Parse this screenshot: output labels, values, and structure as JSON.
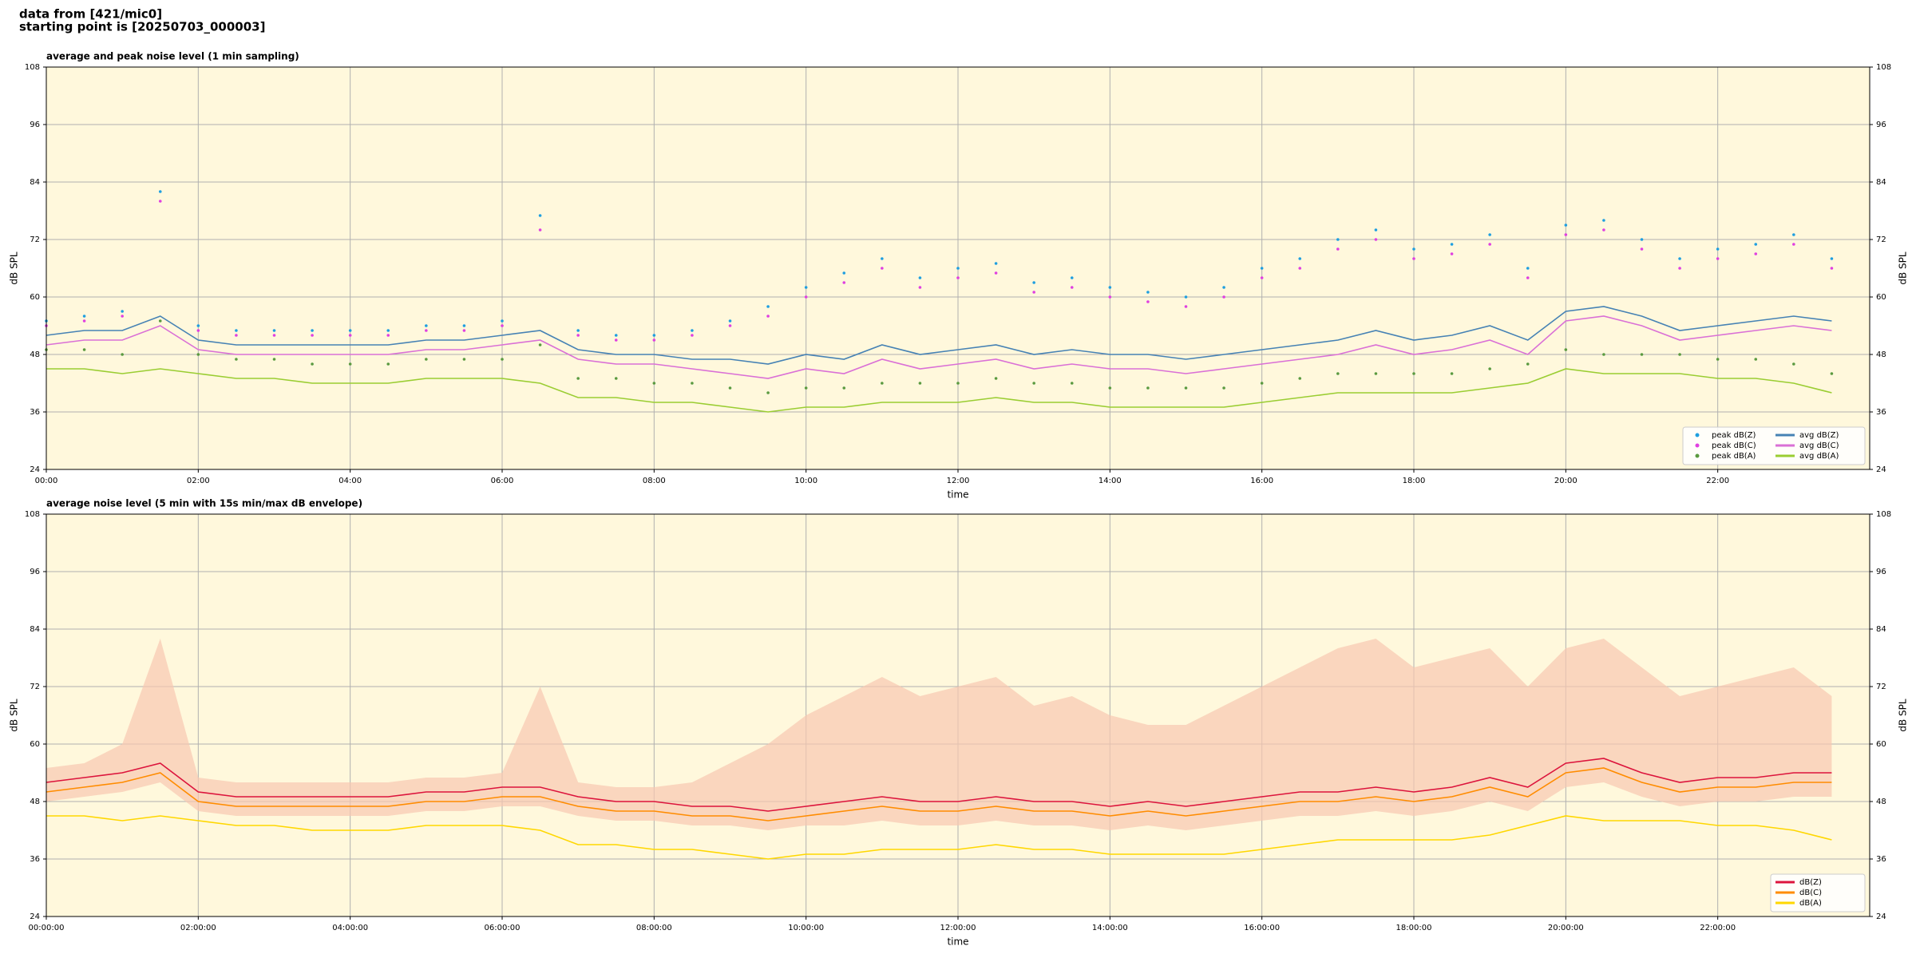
{
  "header": [
    "data from [421/mic0]",
    "starting point is [20250703_000003]"
  ],
  "chart_data": [
    {
      "type": "line",
      "title": "average and peak noise level (1 min sampling)",
      "xlabel": "time",
      "ylabel": "dB SPL",
      "background": "#fff8dc",
      "grid": true,
      "legend": "lower right",
      "legend_columns": 2,
      "xlim": [
        0,
        24
      ],
      "xticks": [
        {
          "value": 0,
          "label": "00:00"
        },
        {
          "value": 2,
          "label": "02:00"
        },
        {
          "value": 4,
          "label": "04:00"
        },
        {
          "value": 6,
          "label": "06:00"
        },
        {
          "value": 8,
          "label": "08:00"
        },
        {
          "value": 10,
          "label": "10:00"
        },
        {
          "value": 12,
          "label": "12:00"
        },
        {
          "value": 14,
          "label": "14:00"
        },
        {
          "value": 16,
          "label": "16:00"
        },
        {
          "value": 18,
          "label": "18:00"
        },
        {
          "value": 20,
          "label": "20:00"
        },
        {
          "value": 22,
          "label": "22:00"
        }
      ],
      "ylim": [
        24,
        108
      ],
      "yticks": [
        24,
        36,
        48,
        60,
        72,
        84,
        96,
        108
      ],
      "x": [
        0,
        0.5,
        1,
        1.5,
        2,
        2.5,
        3,
        3.5,
        4,
        4.5,
        5,
        5.5,
        6,
        6.5,
        7,
        7.5,
        8,
        8.5,
        9,
        9.5,
        10,
        10.5,
        11,
        11.5,
        12,
        12.5,
        13,
        13.5,
        14,
        14.5,
        15,
        15.5,
        16,
        16.5,
        17,
        17.5,
        18,
        18.5,
        19,
        19.5,
        20,
        20.5,
        21,
        21.5,
        22,
        22.5,
        23,
        23.5
      ],
      "series": [
        {
          "name": "peak dB(Z)",
          "kind": "scatter",
          "color": "#1f9fe0",
          "values": [
            55,
            56,
            57,
            82,
            54,
            53,
            53,
            53,
            53,
            53,
            54,
            54,
            55,
            77,
            53,
            52,
            52,
            53,
            55,
            58,
            62,
            65,
            68,
            64,
            66,
            67,
            63,
            64,
            62,
            61,
            60,
            62,
            66,
            68,
            72,
            74,
            70,
            71,
            73,
            66,
            75,
            76,
            72,
            68,
            70,
            71,
            73,
            68
          ]
        },
        {
          "name": "peak dB(C)",
          "kind": "scatter",
          "color": "#e040e0",
          "values": [
            54,
            55,
            56,
            80,
            53,
            52,
            52,
            52,
            52,
            52,
            53,
            53,
            54,
            74,
            52,
            51,
            51,
            52,
            54,
            56,
            60,
            63,
            66,
            62,
            64,
            65,
            61,
            62,
            60,
            59,
            58,
            60,
            64,
            66,
            70,
            72,
            68,
            69,
            71,
            64,
            73,
            74,
            70,
            66,
            68,
            69,
            71,
            66
          ]
        },
        {
          "name": "peak dB(A)",
          "kind": "scatter",
          "color": "#5a9a40",
          "values": [
            49,
            49,
            48,
            55,
            48,
            47,
            47,
            46,
            46,
            46,
            47,
            47,
            47,
            50,
            43,
            43,
            42,
            42,
            41,
            40,
            41,
            41,
            42,
            42,
            42,
            43,
            42,
            42,
            41,
            41,
            41,
            41,
            42,
            43,
            44,
            44,
            44,
            44,
            45,
            46,
            49,
            48,
            48,
            48,
            47,
            47,
            46,
            44
          ]
        },
        {
          "name": "avg dB(Z)",
          "kind": "line",
          "color": "#4682b4",
          "values": [
            52,
            53,
            53,
            56,
            51,
            50,
            50,
            50,
            50,
            50,
            51,
            51,
            52,
            53,
            49,
            48,
            48,
            47,
            47,
            46,
            48,
            47,
            50,
            48,
            49,
            50,
            48,
            49,
            48,
            48,
            47,
            48,
            49,
            50,
            51,
            53,
            51,
            52,
            54,
            51,
            57,
            58,
            56,
            53,
            54,
            55,
            56,
            55
          ]
        },
        {
          "name": "avg dB(C)",
          "kind": "line",
          "color": "#da70d6",
          "values": [
            50,
            51,
            51,
            54,
            49,
            48,
            48,
            48,
            48,
            48,
            49,
            49,
            50,
            51,
            47,
            46,
            46,
            45,
            44,
            43,
            45,
            44,
            47,
            45,
            46,
            47,
            45,
            46,
            45,
            45,
            44,
            45,
            46,
            47,
            48,
            50,
            48,
            49,
            51,
            48,
            55,
            56,
            54,
            51,
            52,
            53,
            54,
            53
          ]
        },
        {
          "name": "avg dB(A)",
          "kind": "line",
          "color": "#9acd32",
          "values": [
            45,
            45,
            44,
            45,
            44,
            43,
            43,
            42,
            42,
            42,
            43,
            43,
            43,
            42,
            39,
            39,
            38,
            38,
            37,
            36,
            37,
            37,
            38,
            38,
            38,
            39,
            38,
            38,
            37,
            37,
            37,
            37,
            38,
            39,
            40,
            40,
            40,
            40,
            41,
            42,
            45,
            44,
            44,
            44,
            43,
            43,
            42,
            40
          ]
        }
      ]
    },
    {
      "type": "line",
      "title": "average noise level (5 min with 15s min/max dB envelope)",
      "xlabel": "time",
      "ylabel": "dB SPL",
      "background": "#fff8dc",
      "grid": true,
      "legend": "lower right",
      "legend_columns": 1,
      "xlim": [
        0,
        24
      ],
      "xticks": [
        {
          "value": 0,
          "label": "00:00:00"
        },
        {
          "value": 2,
          "label": "02:00:00"
        },
        {
          "value": 4,
          "label": "04:00:00"
        },
        {
          "value": 6,
          "label": "06:00:00"
        },
        {
          "value": 8,
          "label": "08:00:00"
        },
        {
          "value": 10,
          "label": "10:00:00"
        },
        {
          "value": 12,
          "label": "12:00:00"
        },
        {
          "value": 14,
          "label": "14:00:00"
        },
        {
          "value": 16,
          "label": "16:00:00"
        },
        {
          "value": 18,
          "label": "18:00:00"
        },
        {
          "value": 20,
          "label": "20:00:00"
        },
        {
          "value": 22,
          "label": "22:00:00"
        }
      ],
      "ylim": [
        24,
        108
      ],
      "yticks": [
        24,
        36,
        48,
        60,
        72,
        84,
        96,
        108
      ],
      "x": [
        0,
        0.5,
        1,
        1.5,
        2,
        2.5,
        3,
        3.5,
        4,
        4.5,
        5,
        5.5,
        6,
        6.5,
        7,
        7.5,
        8,
        8.5,
        9,
        9.5,
        10,
        10.5,
        11,
        11.5,
        12,
        12.5,
        13,
        13.5,
        14,
        14.5,
        15,
        15.5,
        16,
        16.5,
        17,
        17.5,
        18,
        18.5,
        19,
        19.5,
        20,
        20.5,
        21,
        21.5,
        22,
        22.5,
        23,
        23.5
      ],
      "band": {
        "color": "#f8c8b0",
        "lower": [
          48,
          49,
          50,
          52,
          46,
          45,
          45,
          45,
          45,
          45,
          46,
          46,
          47,
          47,
          45,
          44,
          44,
          43,
          43,
          42,
          43,
          43,
          44,
          43,
          43,
          44,
          43,
          43,
          42,
          43,
          42,
          43,
          44,
          45,
          45,
          46,
          45,
          46,
          48,
          46,
          51,
          52,
          49,
          47,
          48,
          48,
          49,
          49
        ],
        "upper": [
          55,
          56,
          60,
          82,
          53,
          52,
          52,
          52,
          52,
          52,
          53,
          53,
          54,
          72,
          52,
          51,
          51,
          52,
          56,
          60,
          66,
          70,
          74,
          70,
          72,
          74,
          68,
          70,
          66,
          64,
          64,
          68,
          72,
          76,
          80,
          82,
          76,
          78,
          80,
          72,
          80,
          82,
          76,
          70,
          72,
          74,
          76,
          70
        ]
      },
      "series": [
        {
          "name": "dB(Z)",
          "kind": "line",
          "color": "#dc143c",
          "values": [
            52,
            53,
            54,
            56,
            50,
            49,
            49,
            49,
            49,
            49,
            50,
            50,
            51,
            51,
            49,
            48,
            48,
            47,
            47,
            46,
            47,
            48,
            49,
            48,
            48,
            49,
            48,
            48,
            47,
            48,
            47,
            48,
            49,
            50,
            50,
            51,
            50,
            51,
            53,
            51,
            56,
            57,
            54,
            52,
            53,
            53,
            54,
            54
          ]
        },
        {
          "name": "dB(C)",
          "kind": "line",
          "color": "#ff8c00",
          "values": [
            50,
            51,
            52,
            54,
            48,
            47,
            47,
            47,
            47,
            47,
            48,
            48,
            49,
            49,
            47,
            46,
            46,
            45,
            45,
            44,
            45,
            46,
            47,
            46,
            46,
            47,
            46,
            46,
            45,
            46,
            45,
            46,
            47,
            48,
            48,
            49,
            48,
            49,
            51,
            49,
            54,
            55,
            52,
            50,
            51,
            51,
            52,
            52
          ]
        },
        {
          "name": "dB(A)",
          "kind": "line",
          "color": "#ffd700",
          "values": [
            45,
            45,
            44,
            45,
            44,
            43,
            43,
            42,
            42,
            42,
            43,
            43,
            43,
            42,
            39,
            39,
            38,
            38,
            37,
            36,
            37,
            37,
            38,
            38,
            38,
            39,
            38,
            38,
            37,
            37,
            37,
            37,
            38,
            39,
            40,
            40,
            40,
            40,
            41,
            43,
            45,
            44,
            44,
            44,
            43,
            43,
            42,
            40
          ]
        }
      ]
    }
  ]
}
